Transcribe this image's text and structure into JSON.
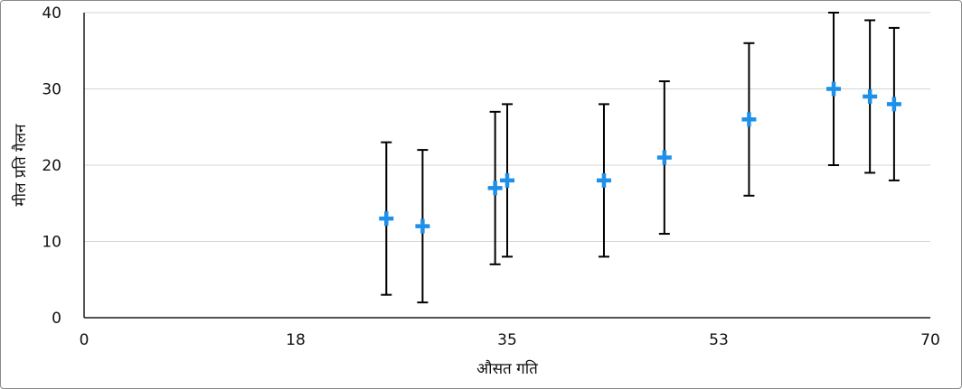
{
  "chart_data": {
    "type": "scatter",
    "title": "",
    "xlabel": "औसत गति",
    "ylabel": "मील प्रति गैलन",
    "xlim": [
      0,
      70
    ],
    "ylim": [
      0,
      40
    ],
    "x_ticks": [
      "0",
      "18",
      "35",
      "53",
      "70"
    ],
    "y_ticks": [
      "0",
      "10",
      "20",
      "30",
      "40"
    ],
    "grid": "horizontal",
    "legend": "none",
    "marker": "plus",
    "marker_color": "#1E90E8",
    "error_bar_color": "#000000",
    "error_bar_range": 10,
    "points": [
      {
        "x": 25,
        "y": 13,
        "low": 3,
        "high": 23
      },
      {
        "x": 28,
        "y": 12,
        "low": 2,
        "high": 22
      },
      {
        "x": 34,
        "y": 17,
        "low": 7,
        "high": 27
      },
      {
        "x": 35,
        "y": 18,
        "low": 8,
        "high": 28
      },
      {
        "x": 43,
        "y": 18,
        "low": 8,
        "high": 28
      },
      {
        "x": 48,
        "y": 21,
        "low": 11,
        "high": 31
      },
      {
        "x": 55,
        "y": 26,
        "low": 16,
        "high": 36
      },
      {
        "x": 62,
        "y": 30,
        "low": 20,
        "high": 40
      },
      {
        "x": 65,
        "y": 29,
        "low": 19,
        "high": 39
      },
      {
        "x": 67,
        "y": 28,
        "low": 18,
        "high": 38
      }
    ]
  }
}
